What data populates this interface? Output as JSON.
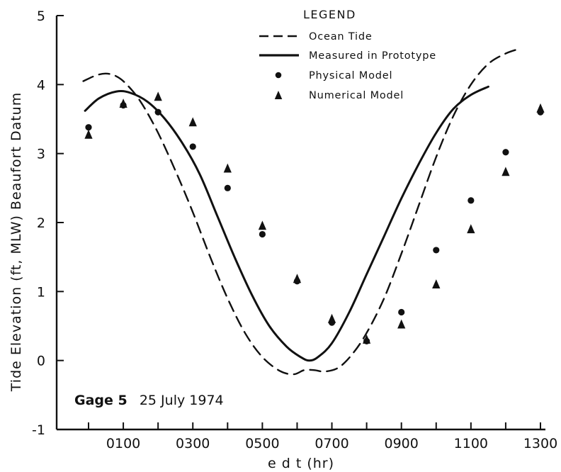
{
  "chart_data": {
    "type": "line",
    "xlabel": "e d t (hr)",
    "ylabel": "Tide Elevation (ft, MLW) Beaufort Datum",
    "xlim": [
      -1,
      13
    ],
    "ylim": [
      -1,
      5
    ],
    "x_tick_labels": [
      {
        "x": 1,
        "label": "0100"
      },
      {
        "x": 3,
        "label": "0300"
      },
      {
        "x": 5,
        "label": "0500"
      },
      {
        "x": 7,
        "label": "0700"
      },
      {
        "x": 9,
        "label": "0900"
      },
      {
        "x": 11,
        "label": "1100"
      },
      {
        "x": 13,
        "label": "1300"
      }
    ],
    "y_tick_labels": [
      {
        "y": -1,
        "label": "-1"
      },
      {
        "y": 0,
        "label": "0"
      },
      {
        "y": 1,
        "label": "1"
      },
      {
        "y": 2,
        "label": "2"
      },
      {
        "y": 3,
        "label": "3"
      },
      {
        "y": 4,
        "label": "4"
      },
      {
        "y": 5,
        "label": "5"
      }
    ],
    "legend": {
      "title": "LEGEND",
      "position": "top-right",
      "entries": [
        {
          "label": "Ocean Tide",
          "symbol": "dashed-line"
        },
        {
          "label": "Measured in Prototype",
          "symbol": "solid-line"
        },
        {
          "label": "Physical Model",
          "symbol": "dot"
        },
        {
          "label": "Numerical Model",
          "symbol": "triangle"
        }
      ]
    },
    "annotation": {
      "bold": "Gage 5",
      "text": "25 July 1974"
    },
    "grid": false,
    "series": [
      {
        "name": "Ocean Tide",
        "style": "dashed",
        "points": [
          [
            -0.15,
            4.05
          ],
          [
            0.2,
            4.13
          ],
          [
            0.5,
            4.16
          ],
          [
            0.8,
            4.12
          ],
          [
            1.1,
            4.0
          ],
          [
            1.5,
            3.75
          ],
          [
            2.0,
            3.3
          ],
          [
            2.5,
            2.75
          ],
          [
            3.0,
            2.15
          ],
          [
            3.5,
            1.5
          ],
          [
            4.0,
            0.9
          ],
          [
            4.5,
            0.4
          ],
          [
            5.0,
            0.05
          ],
          [
            5.5,
            -0.15
          ],
          [
            5.9,
            -0.2
          ],
          [
            6.2,
            -0.14
          ],
          [
            6.5,
            -0.14
          ],
          [
            6.8,
            -0.16
          ],
          [
            7.2,
            -0.1
          ],
          [
            7.6,
            0.1
          ],
          [
            8.0,
            0.4
          ],
          [
            8.5,
            0.9
          ],
          [
            9.0,
            1.55
          ],
          [
            9.5,
            2.25
          ],
          [
            10.0,
            2.95
          ],
          [
            10.5,
            3.55
          ],
          [
            11.0,
            4.0
          ],
          [
            11.5,
            4.3
          ],
          [
            12.0,
            4.45
          ],
          [
            12.4,
            4.52
          ]
        ]
      },
      {
        "name": "Measured in Prototype",
        "style": "solid",
        "points": [
          [
            -0.1,
            3.62
          ],
          [
            0.3,
            3.8
          ],
          [
            0.8,
            3.9
          ],
          [
            1.2,
            3.88
          ],
          [
            1.7,
            3.75
          ],
          [
            2.2,
            3.5
          ],
          [
            2.7,
            3.15
          ],
          [
            3.2,
            2.7
          ],
          [
            3.7,
            2.1
          ],
          [
            4.2,
            1.5
          ],
          [
            4.7,
            0.95
          ],
          [
            5.2,
            0.5
          ],
          [
            5.7,
            0.2
          ],
          [
            6.1,
            0.05
          ],
          [
            6.35,
            0.0
          ],
          [
            6.6,
            0.05
          ],
          [
            7.0,
            0.25
          ],
          [
            7.5,
            0.7
          ],
          [
            8.0,
            1.25
          ],
          [
            8.5,
            1.8
          ],
          [
            9.0,
            2.35
          ],
          [
            9.5,
            2.85
          ],
          [
            10.0,
            3.3
          ],
          [
            10.5,
            3.65
          ],
          [
            11.0,
            3.85
          ],
          [
            11.5,
            3.97
          ]
        ]
      },
      {
        "name": "Physical Model",
        "style": "dot",
        "points": [
          [
            0,
            3.38
          ],
          [
            1,
            3.7
          ],
          [
            2,
            3.6
          ],
          [
            3,
            3.1
          ],
          [
            4,
            2.5
          ],
          [
            5,
            1.83
          ],
          [
            6,
            1.15
          ],
          [
            7,
            0.55
          ],
          [
            8,
            0.28
          ],
          [
            9,
            0.7
          ],
          [
            10,
            1.6
          ],
          [
            11,
            2.32
          ],
          [
            12,
            3.02
          ],
          [
            13,
            3.6
          ]
        ]
      },
      {
        "name": "Numerical Model",
        "style": "triangle",
        "points": [
          [
            0,
            3.27
          ],
          [
            1,
            3.72
          ],
          [
            2,
            3.82
          ],
          [
            3,
            3.45
          ],
          [
            4,
            2.78
          ],
          [
            5,
            1.95
          ],
          [
            6,
            1.18
          ],
          [
            7,
            0.6
          ],
          [
            8,
            0.3
          ],
          [
            9,
            0.52
          ],
          [
            10,
            1.1
          ],
          [
            11,
            1.9
          ],
          [
            12,
            2.73
          ],
          [
            13,
            3.65
          ]
        ]
      }
    ]
  }
}
